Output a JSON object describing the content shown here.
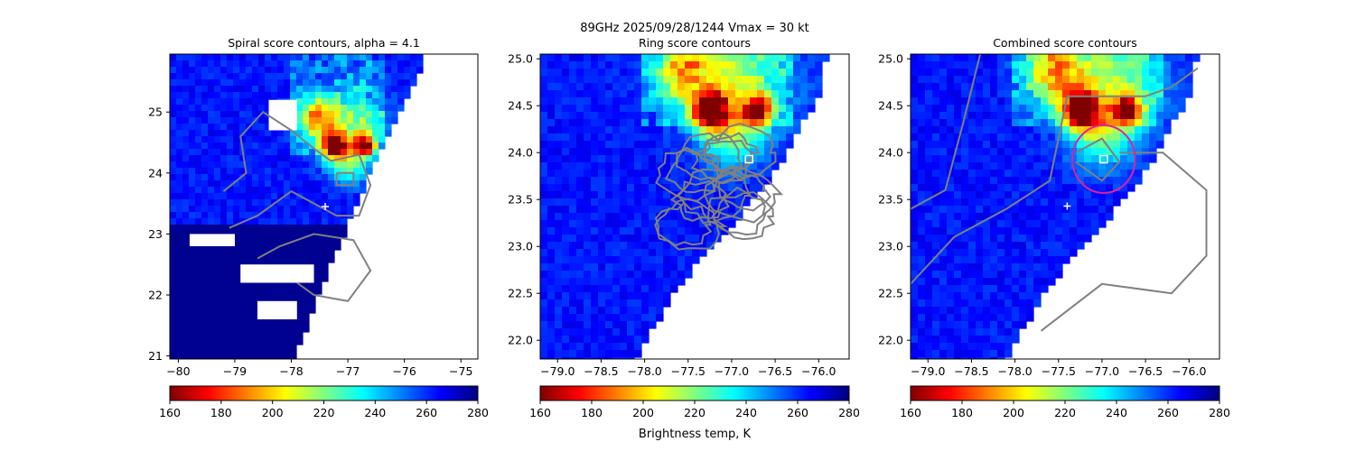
{
  "suptitle": "89GHz  2025/09/28/1244    Vmax = 30 kt",
  "colorbar_label": "Brightness temp, K",
  "colormap": [
    "#800000",
    "#ff0000",
    "#ff8000",
    "#ffff00",
    "#80ff80",
    "#00ffff",
    "#0080ff",
    "#0000ff",
    "#000080"
  ],
  "contour_color": "#808080",
  "ring_color": "#e020a0",
  "chart_data": [
    {
      "type": "heatmap",
      "title": "Spiral score contours, alpha =  4.1",
      "xlim": [
        -80.15,
        -74.7
      ],
      "ylim": [
        20.95,
        25.95
      ],
      "xticks": [
        -80,
        -79,
        -78,
        -77,
        -76,
        -75
      ],
      "yticks": [
        21,
        22,
        23,
        24,
        25
      ],
      "colorbar": {
        "min": 160,
        "max": 280,
        "ticks": [
          160,
          180,
          200,
          220,
          240,
          260,
          280
        ]
      },
      "center_marker": {
        "x": -77.4,
        "y": 23.45,
        "shape": "plus"
      },
      "swath_edge": [
        [
          -77.95,
          20.95
        ],
        [
          -77.3,
          22.5
        ],
        [
          -76.7,
          23.8
        ],
        [
          -75.9,
          25.3
        ],
        [
          -75.6,
          25.95
        ]
      ]
    },
    {
      "type": "heatmap",
      "title": "Ring score contours",
      "xlim": [
        -79.2,
        -75.65
      ],
      "ylim": [
        21.8,
        25.05
      ],
      "xticks": [
        -79.0,
        -78.5,
        -78.0,
        -77.5,
        -77.0,
        -76.5,
        -76.0
      ],
      "yticks": [
        22.0,
        22.5,
        23.0,
        23.5,
        24.0,
        24.5,
        25.0
      ],
      "colorbar": {
        "min": 160,
        "max": 280,
        "ticks": [
          160,
          180,
          200,
          220,
          240,
          260,
          280
        ]
      },
      "center_marker": {
        "x": -76.8,
        "y": 23.93,
        "shape": "square"
      },
      "swath_edge": [
        [
          -78.1,
          21.8
        ],
        [
          -77.6,
          22.6
        ],
        [
          -77.0,
          23.2
        ],
        [
          -76.5,
          23.8
        ],
        [
          -76.0,
          24.6
        ],
        [
          -75.9,
          25.05
        ]
      ]
    },
    {
      "type": "heatmap",
      "title": "Combined score contours",
      "xlim": [
        -79.2,
        -75.65
      ],
      "ylim": [
        21.8,
        25.05
      ],
      "xticks": [
        -79.0,
        -78.5,
        -78.0,
        -77.5,
        -77.0,
        -76.5,
        -76.0
      ],
      "yticks": [
        22.0,
        22.5,
        23.0,
        23.5,
        24.0,
        24.5,
        25.0
      ],
      "colorbar": {
        "min": 160,
        "max": 280,
        "ticks": [
          160,
          180,
          200,
          220,
          240,
          260,
          280
        ]
      },
      "center_marker": {
        "x": -76.98,
        "y": 23.93,
        "shape": "square"
      },
      "plus_marker": {
        "x": -77.4,
        "y": 23.43
      },
      "ring": {
        "cx": -76.98,
        "cy": 23.93,
        "r": 0.36
      },
      "swath_edge": [
        [
          -78.1,
          21.8
        ],
        [
          -77.6,
          22.6
        ],
        [
          -77.0,
          23.2
        ],
        [
          -76.5,
          23.8
        ],
        [
          -76.0,
          24.6
        ],
        [
          -75.9,
          25.05
        ]
      ]
    }
  ]
}
